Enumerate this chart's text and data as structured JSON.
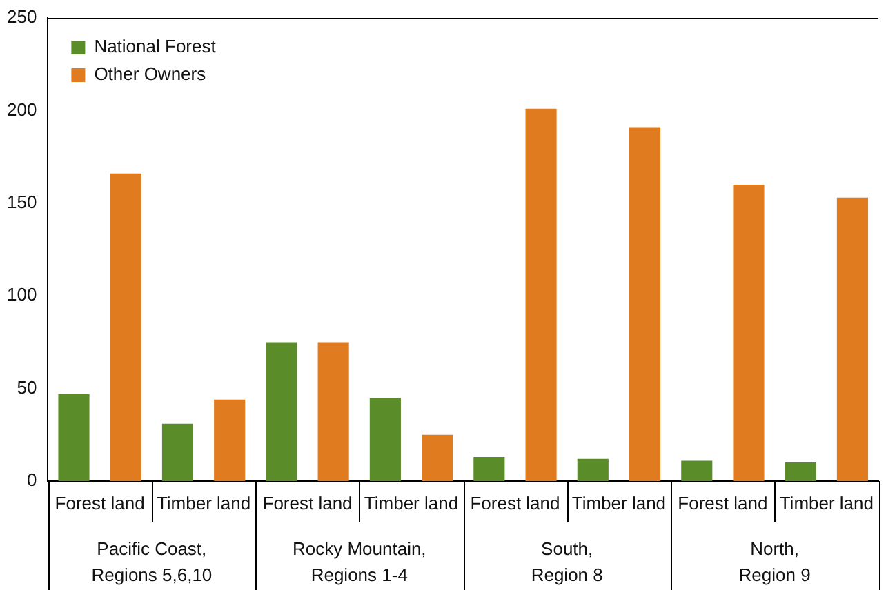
{
  "chart_data": {
    "type": "bar",
    "categories": [
      "Forest land",
      "Timber land",
      "Forest land",
      "Timber land",
      "Forest land",
      "Timber land",
      "Forest land",
      "Timber land"
    ],
    "series": [
      {
        "name": "National Forest",
        "color": "#5b8c2a",
        "values": [
          47,
          31,
          75,
          45,
          13,
          12,
          11,
          10
        ]
      },
      {
        "name": "Other Owners",
        "color": "#e07b20",
        "values": [
          166,
          44,
          75,
          25,
          201,
          191,
          160,
          153
        ]
      }
    ],
    "annotations": [
      "Pacific Coast,\nRegions 5,6,10",
      "Rocky Mountain,\nRegions 1-4",
      "South,\nRegion 8",
      "North,\nRegion 9"
    ],
    "ylim": [
      0,
      250
    ],
    "yticks": [
      0,
      50,
      100,
      150,
      200,
      250
    ],
    "grid": false,
    "legend": "top left"
  }
}
